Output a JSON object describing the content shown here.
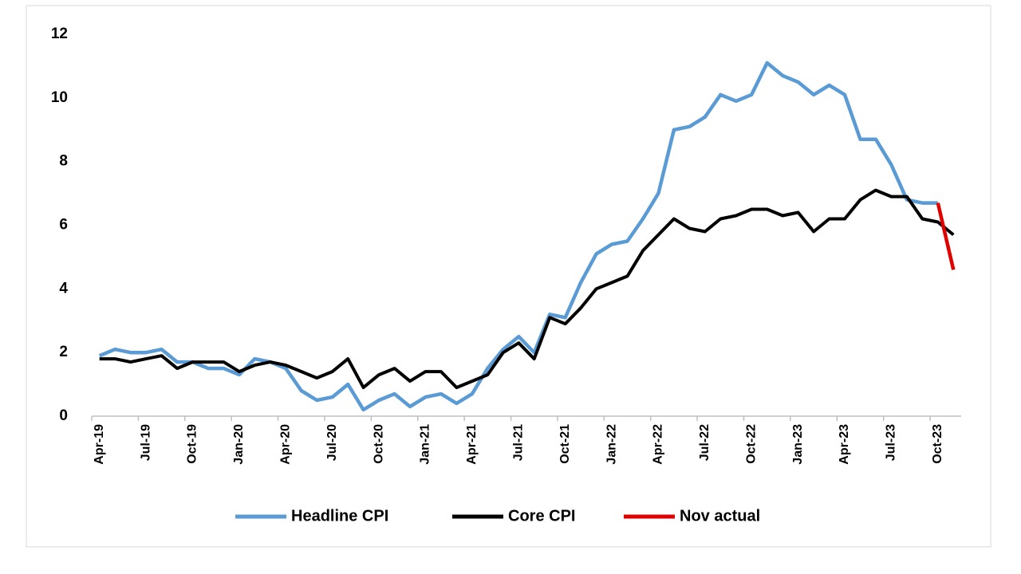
{
  "chart_data": {
    "type": "line",
    "categories": [
      "Apr-19",
      null,
      null,
      "Jul-19",
      null,
      null,
      "Oct-19",
      null,
      null,
      "Jan-20",
      null,
      null,
      "Apr-20",
      null,
      null,
      "Jul-20",
      null,
      null,
      "Oct-20",
      null,
      null,
      "Jan-21",
      null,
      null,
      "Apr-21",
      null,
      null,
      "Jul-21",
      null,
      null,
      "Oct-21",
      null,
      null,
      "Jan-22",
      null,
      null,
      "Apr-22",
      null,
      null,
      "Jul-22",
      null,
      null,
      "Oct-22",
      null,
      null,
      "Jan-23",
      null,
      null,
      "Apr-23",
      null,
      null,
      "Jul-23",
      null,
      null,
      "Oct-23",
      null
    ],
    "series": [
      {
        "name": "Headline CPI",
        "color": "#5b9bd5",
        "values": [
          1.9,
          2.1,
          2.0,
          2.0,
          2.1,
          1.7,
          1.7,
          1.5,
          1.5,
          1.3,
          1.8,
          1.7,
          1.5,
          0.8,
          0.5,
          0.6,
          1.0,
          0.2,
          0.5,
          0.7,
          0.3,
          0.6,
          0.7,
          0.4,
          0.7,
          1.5,
          2.1,
          2.5,
          2.0,
          3.2,
          3.1,
          4.2,
          5.1,
          5.4,
          5.5,
          6.2,
          7.0,
          9.0,
          9.1,
          9.4,
          10.1,
          9.9,
          10.1,
          11.1,
          10.7,
          10.5,
          10.1,
          10.4,
          10.1,
          8.7,
          8.7,
          7.9,
          6.8,
          6.7,
          6.7,
          null
        ]
      },
      {
        "name": "Core CPI",
        "color": "#000000",
        "values": [
          1.8,
          1.8,
          1.7,
          1.8,
          1.9,
          1.5,
          1.7,
          1.7,
          1.7,
          1.4,
          1.6,
          1.7,
          1.6,
          1.4,
          1.2,
          1.4,
          1.8,
          0.9,
          1.3,
          1.5,
          1.1,
          1.4,
          1.4,
          0.9,
          1.1,
          1.3,
          2.0,
          2.3,
          1.8,
          3.1,
          2.9,
          3.4,
          4.0,
          4.2,
          4.4,
          5.2,
          5.7,
          6.2,
          5.9,
          5.8,
          6.2,
          6.3,
          6.5,
          6.5,
          6.3,
          6.4,
          5.8,
          6.2,
          6.2,
          6.8,
          7.1,
          6.9,
          6.9,
          6.2,
          6.1,
          5.7
        ]
      },
      {
        "name": "Nov actual",
        "color": "#e00000",
        "values": [
          null,
          null,
          null,
          null,
          null,
          null,
          null,
          null,
          null,
          null,
          null,
          null,
          null,
          null,
          null,
          null,
          null,
          null,
          null,
          null,
          null,
          null,
          null,
          null,
          null,
          null,
          null,
          null,
          null,
          null,
          null,
          null,
          null,
          null,
          null,
          null,
          null,
          null,
          null,
          null,
          null,
          null,
          null,
          null,
          null,
          null,
          null,
          null,
          null,
          null,
          null,
          null,
          null,
          null,
          6.7,
          4.6
        ]
      }
    ],
    "ylim": [
      0,
      12
    ],
    "yticks": [
      0,
      2,
      4,
      6,
      8,
      10,
      12
    ],
    "grid": false,
    "legend": "bottom"
  }
}
